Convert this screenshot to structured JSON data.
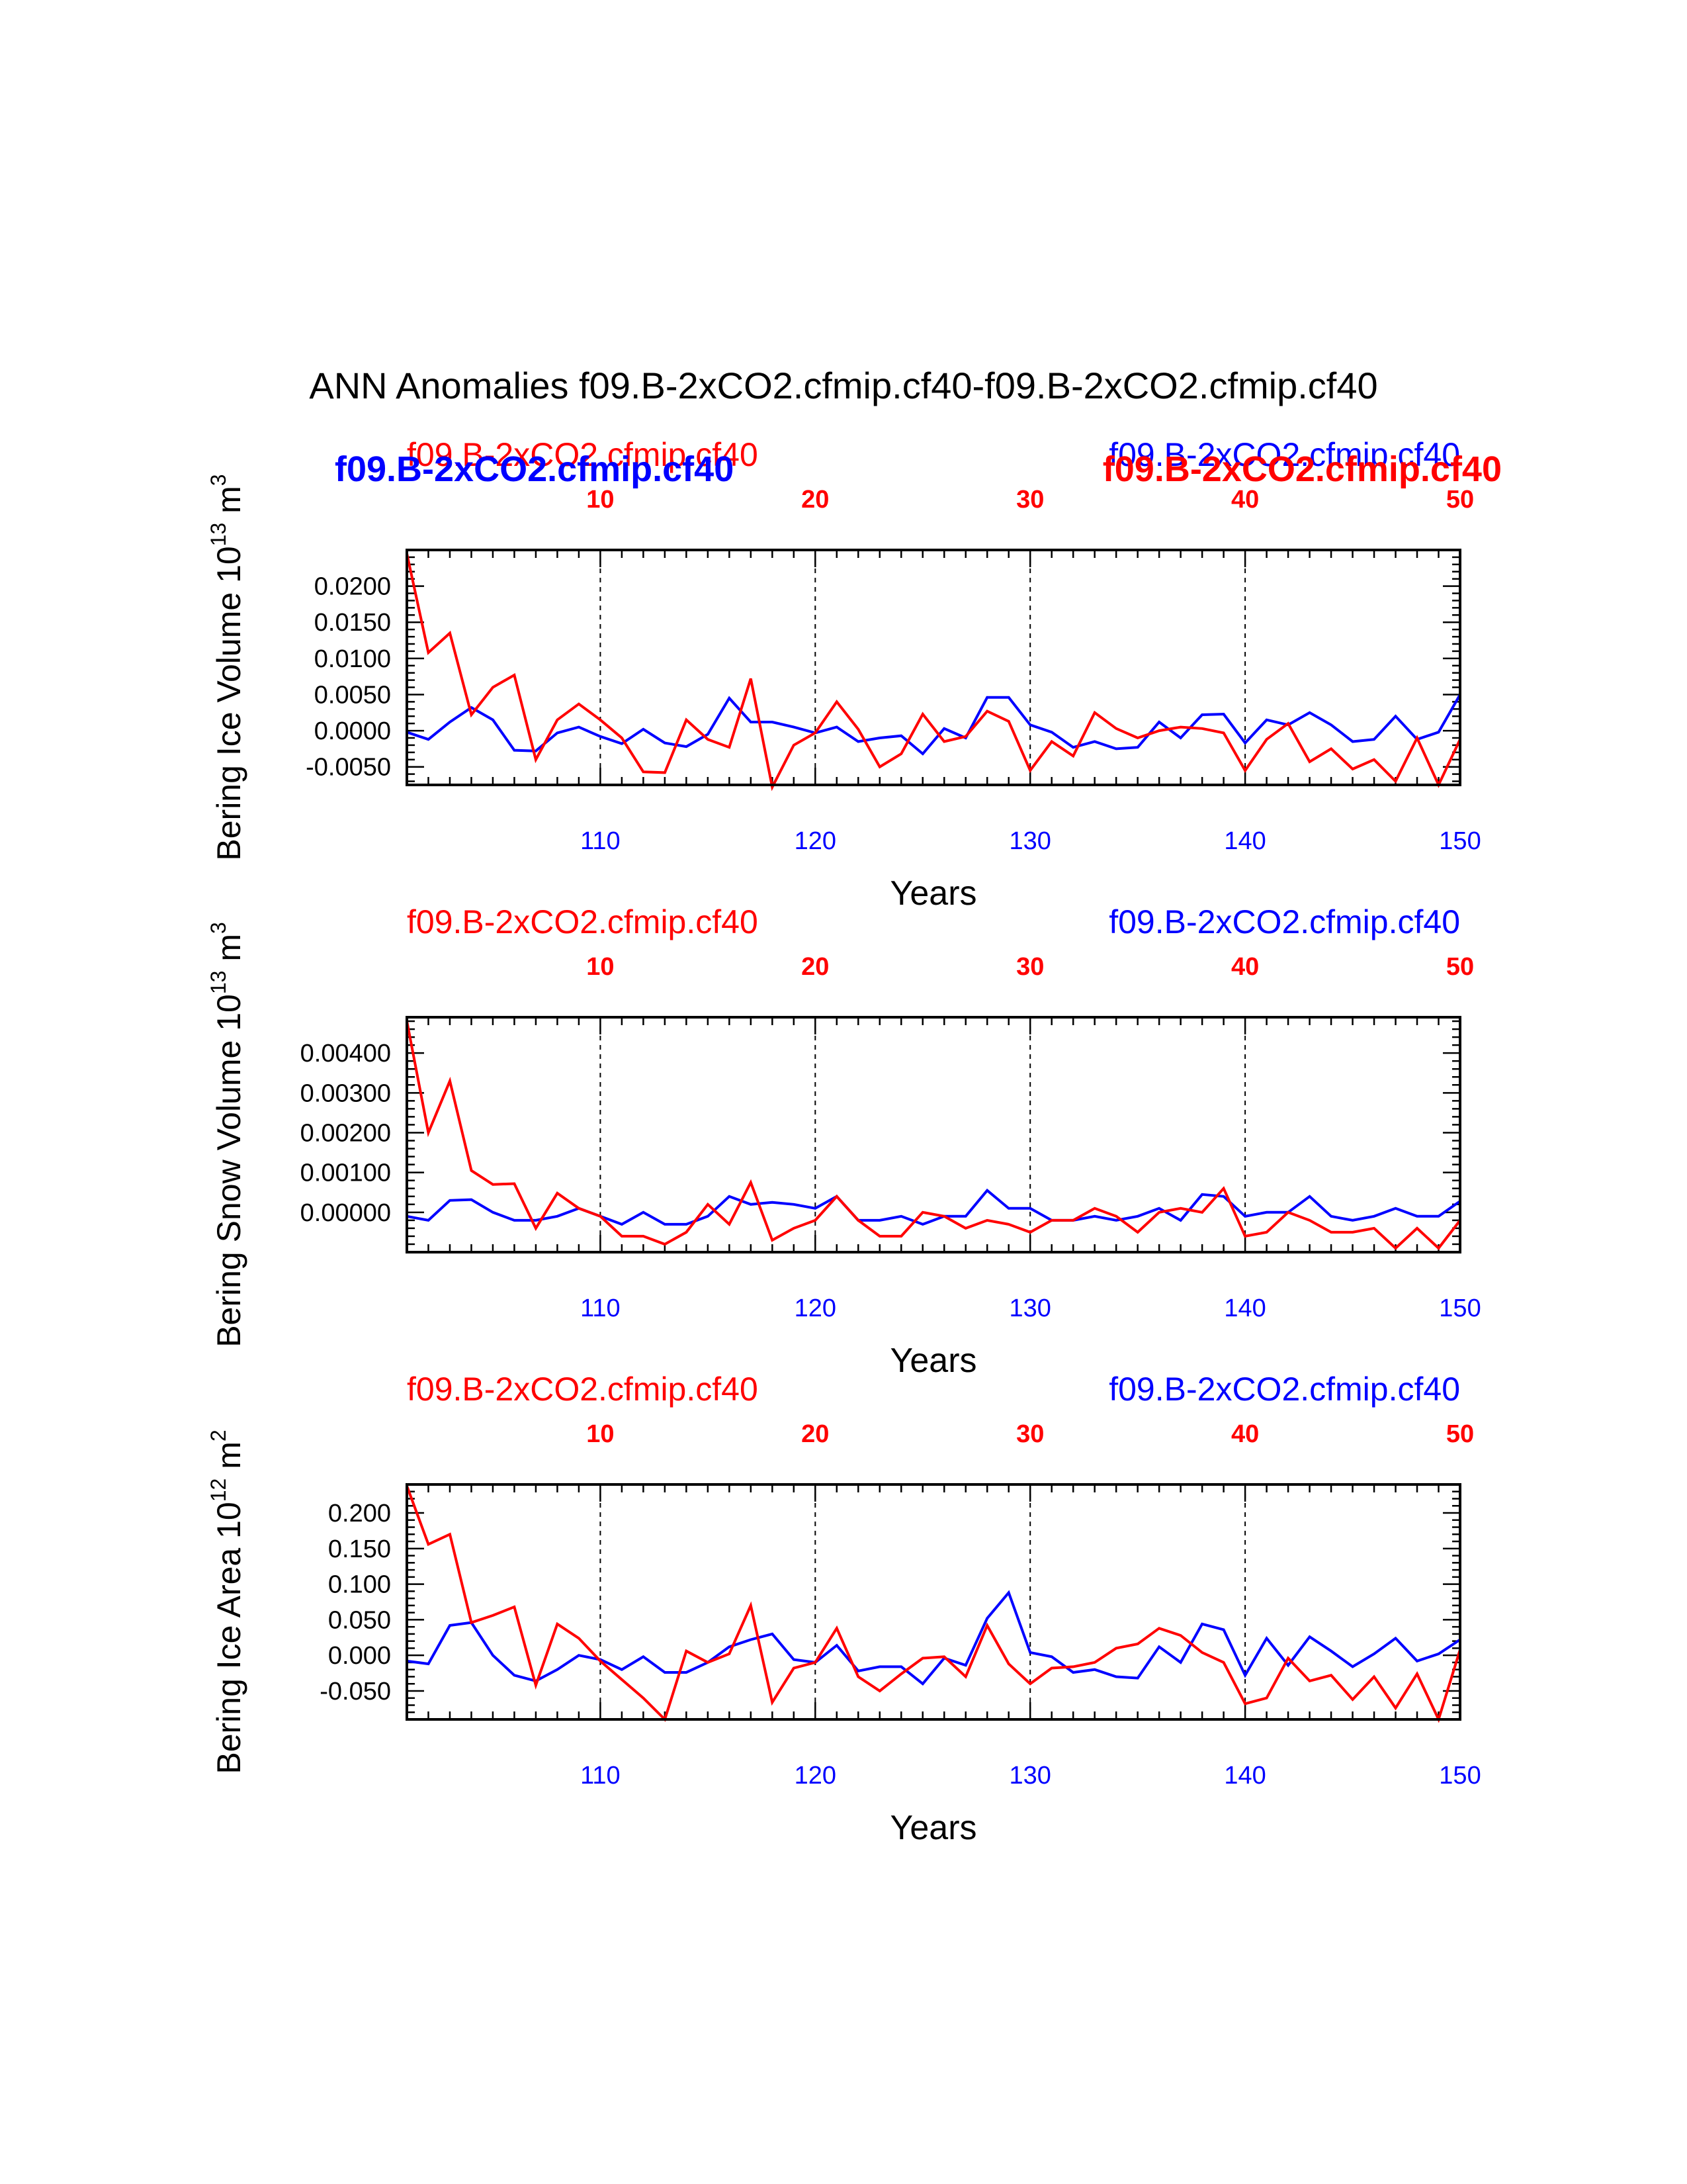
{
  "figure": {
    "title": "ANN Anomalies f09.B-2xCO2.cfmip.cf40-f09.B-2xCO2.cfmip.cf40",
    "colors": {
      "case1": "#ff0000",
      "case2": "#0000ff",
      "axes": "#000000"
    }
  },
  "chart_data": [
    {
      "type": "line",
      "ylabel": "Bering Ice Volume 10",
      "ylabel_exp": "13",
      "ylabel_unit": " m",
      "ylabel_unit_exp": "3",
      "xlabel": "Years",
      "left_title": "f09.B-2xCO2.cfmip.cf40",
      "right_title": "f09.B-2xCO2.cfmip.cf40",
      "bold_left_title": "f09.B-2xCO2.cfmip.cf40",
      "bold_right_title": "f09.B-2xCO2.cfmip.cf40",
      "top_axis": {
        "range": [
          1,
          50
        ],
        "ticks": [
          10,
          20,
          30,
          40,
          50
        ],
        "labels": [
          "10",
          "20",
          "30",
          "40",
          "50"
        ]
      },
      "bottom_axis": {
        "range": [
          101,
          150
        ],
        "ticks": [
          110,
          120,
          130,
          140,
          150
        ],
        "labels": [
          "110",
          "120",
          "130",
          "140",
          "150"
        ]
      },
      "ylim": [
        -0.0075,
        0.025
      ],
      "yticks": [
        0.02,
        0.015,
        0.01,
        0.005,
        0.0,
        -0.005
      ],
      "ytick_labels": [
        "0.0200",
        "0.0150",
        "0.0100",
        "0.0050",
        "0.0000",
        "-0.0050"
      ],
      "series": [
        {
          "name": "f09.B-2xCO2.cfmip.cf40",
          "color": "#0000ff",
          "axis": "bottom",
          "x_start": 101,
          "values": [
            -0.0002,
            -0.0012,
            0.0012,
            0.0032,
            0.0015,
            -0.0027,
            -0.0028,
            -0.0003,
            0.0005,
            -0.0008,
            -0.0018,
            0.0002,
            -0.0017,
            -0.0022,
            -0.0005,
            0.0045,
            0.0012,
            0.0012,
            0.0005,
            -0.0003,
            0.0005,
            -0.0015,
            -0.001,
            -0.0007,
            -0.0032,
            0.0003,
            -0.001,
            0.0046,
            0.0046,
            0.0008,
            -0.0002,
            -0.0023,
            -0.0015,
            -0.0025,
            -0.0023,
            0.0012,
            -0.001,
            0.0022,
            0.0023,
            -0.0017,
            0.0015,
            0.0008,
            0.0025,
            0.0008,
            -0.0015,
            -0.0012,
            0.002,
            -0.0012,
            -0.0002,
            0.005
          ]
        },
        {
          "name": "f09.B-2xCO2.cfmip.cf40",
          "color": "#ff0000",
          "axis": "top",
          "x_start": 1,
          "values": [
            0.0245,
            0.0108,
            0.0135,
            0.0022,
            0.006,
            0.0077,
            -0.004,
            0.0015,
            0.0037,
            0.0015,
            -0.001,
            -0.0057,
            -0.0058,
            0.0015,
            -0.0012,
            -0.0023,
            0.0072,
            -0.0078,
            -0.002,
            -0.0003,
            0.004,
            0.0002,
            -0.005,
            -0.0032,
            0.0023,
            -0.0015,
            -0.0008,
            0.0027,
            0.0013,
            -0.0055,
            -0.0015,
            -0.0035,
            0.0025,
            0.0003,
            -0.001,
            0.0,
            0.0005,
            0.0003,
            -0.0003,
            -0.0055,
            -0.0012,
            0.001,
            -0.0043,
            -0.0025,
            -0.0053,
            -0.004,
            -0.007,
            -0.001,
            -0.0075,
            -0.0012
          ]
        }
      ]
    },
    {
      "type": "line",
      "ylabel": "Bering Snow Volume 10",
      "ylabel_exp": "13",
      "ylabel_unit": " m",
      "ylabel_unit_exp": "3",
      "xlabel": "Years",
      "left_title": "f09.B-2xCO2.cfmip.cf40",
      "right_title": "f09.B-2xCO2.cfmip.cf40",
      "top_axis": {
        "range": [
          1,
          50
        ],
        "ticks": [
          10,
          20,
          30,
          40,
          50
        ],
        "labels": [
          "10",
          "20",
          "30",
          "40",
          "50"
        ]
      },
      "bottom_axis": {
        "range": [
          101,
          150
        ],
        "ticks": [
          110,
          120,
          130,
          140,
          150
        ],
        "labels": [
          "110",
          "120",
          "130",
          "140",
          "150"
        ]
      },
      "ylim": [
        -0.001,
        0.0049
      ],
      "yticks": [
        0.004,
        0.003,
        0.002,
        0.001,
        0.0
      ],
      "ytick_labels": [
        "0.00400",
        "0.00300",
        "0.00200",
        "0.00100",
        "0.00000"
      ],
      "series": [
        {
          "name": "f09.B-2xCO2.cfmip.cf40",
          "color": "#0000ff",
          "axis": "bottom",
          "x_start": 101,
          "values": [
            -0.0001,
            -0.0002,
            0.0003,
            0.00032,
            -0.0,
            -0.0002,
            -0.0002,
            -0.0001,
            0.0001,
            -0.0001,
            -0.0003,
            0.0,
            -0.0003,
            -0.0003,
            -0.0001,
            0.0004,
            0.0002,
            0.00025,
            0.0002,
            0.0001,
            0.0004,
            -0.0002,
            -0.0002,
            -0.0001,
            -0.0003,
            -0.0001,
            -0.0001,
            0.00055,
            0.0001,
            0.0001,
            -0.0002,
            -0.0002,
            -0.0001,
            -0.0002,
            -0.0001,
            0.0001,
            -0.0002,
            0.00045,
            0.0004,
            -0.0001,
            0.0,
            0.0,
            0.0004,
            -0.0001,
            -0.0002,
            -0.0001,
            0.0001,
            -0.0001,
            -0.0001,
            0.00028
          ]
        },
        {
          "name": "f09.B-2xCO2.cfmip.cf40",
          "color": "#ff0000",
          "axis": "top",
          "x_start": 1,
          "values": [
            0.0048,
            0.002,
            0.0033,
            0.00105,
            0.0007,
            0.00072,
            -0.0004,
            0.00048,
            0.0001,
            -0.0001,
            -0.0006,
            -0.0006,
            -0.0008,
            -0.0005,
            0.0002,
            -0.0003,
            0.00075,
            -0.0007,
            -0.0004,
            -0.0002,
            0.0004,
            -0.0002,
            -0.0006,
            -0.0006,
            0.0,
            -0.0001,
            -0.0004,
            -0.0002,
            -0.0003,
            -0.0005,
            -0.0002,
            -0.0002,
            0.0001,
            -0.0001,
            -0.0005,
            0.0,
            0.0001,
            0.0,
            0.0006,
            -0.0006,
            -0.0005,
            0.0,
            -0.0002,
            -0.0005,
            -0.0005,
            -0.0004,
            -0.0009,
            -0.0004,
            -0.0009,
            -0.0002
          ]
        }
      ]
    },
    {
      "type": "line",
      "ylabel": "Bering Ice Area 10",
      "ylabel_exp": "12",
      "ylabel_unit": " m",
      "ylabel_unit_exp": "2",
      "xlabel": "Years",
      "left_title": "f09.B-2xCO2.cfmip.cf40",
      "right_title": "f09.B-2xCO2.cfmip.cf40",
      "top_axis": {
        "range": [
          1,
          50
        ],
        "ticks": [
          10,
          20,
          30,
          40,
          50
        ],
        "labels": [
          "10",
          "20",
          "30",
          "40",
          "50"
        ]
      },
      "bottom_axis": {
        "range": [
          101,
          150
        ],
        "ticks": [
          110,
          120,
          130,
          140,
          150
        ],
        "labels": [
          "110",
          "120",
          "130",
          "140",
          "150"
        ]
      },
      "ylim": [
        -0.09,
        0.24
      ],
      "yticks": [
        0.2,
        0.15,
        0.1,
        0.05,
        0.0,
        -0.05
      ],
      "ytick_labels": [
        "0.200",
        "0.150",
        "0.100",
        "0.050",
        "0.000",
        "-0.050"
      ],
      "series": [
        {
          "name": "f09.B-2xCO2.cfmip.cf40",
          "color": "#0000ff",
          "axis": "bottom",
          "x_start": 101,
          "values": [
            -0.008,
            -0.012,
            0.042,
            0.046,
            0.0,
            -0.028,
            -0.036,
            -0.02,
            0.0,
            -0.006,
            -0.02,
            -0.002,
            -0.024,
            -0.024,
            -0.01,
            0.012,
            0.022,
            0.03,
            -0.006,
            -0.01,
            0.014,
            -0.022,
            -0.016,
            -0.016,
            -0.04,
            -0.004,
            -0.014,
            0.052,
            0.088,
            0.004,
            -0.002,
            -0.024,
            -0.02,
            -0.03,
            -0.032,
            0.012,
            -0.01,
            0.044,
            0.036,
            -0.028,
            0.024,
            -0.014,
            0.026,
            0.006,
            -0.016,
            0.002,
            0.024,
            -0.008,
            0.002,
            0.022
          ]
        },
        {
          "name": "f09.B-2xCO2.cfmip.cf40",
          "color": "#ff0000",
          "axis": "top",
          "x_start": 1,
          "values": [
            0.238,
            0.156,
            0.17,
            0.046,
            0.056,
            0.068,
            -0.042,
            0.044,
            0.024,
            -0.008,
            -0.034,
            -0.06,
            -0.09,
            0.006,
            -0.01,
            0.002,
            0.07,
            -0.066,
            -0.018,
            -0.01,
            0.038,
            -0.03,
            -0.05,
            -0.026,
            -0.004,
            -0.002,
            -0.03,
            0.042,
            -0.012,
            -0.04,
            -0.018,
            -0.016,
            -0.01,
            0.01,
            0.016,
            0.038,
            0.028,
            0.004,
            -0.01,
            -0.068,
            -0.06,
            -0.004,
            -0.036,
            -0.028,
            -0.062,
            -0.03,
            -0.074,
            -0.026,
            -0.09,
            0.008
          ]
        }
      ]
    }
  ]
}
